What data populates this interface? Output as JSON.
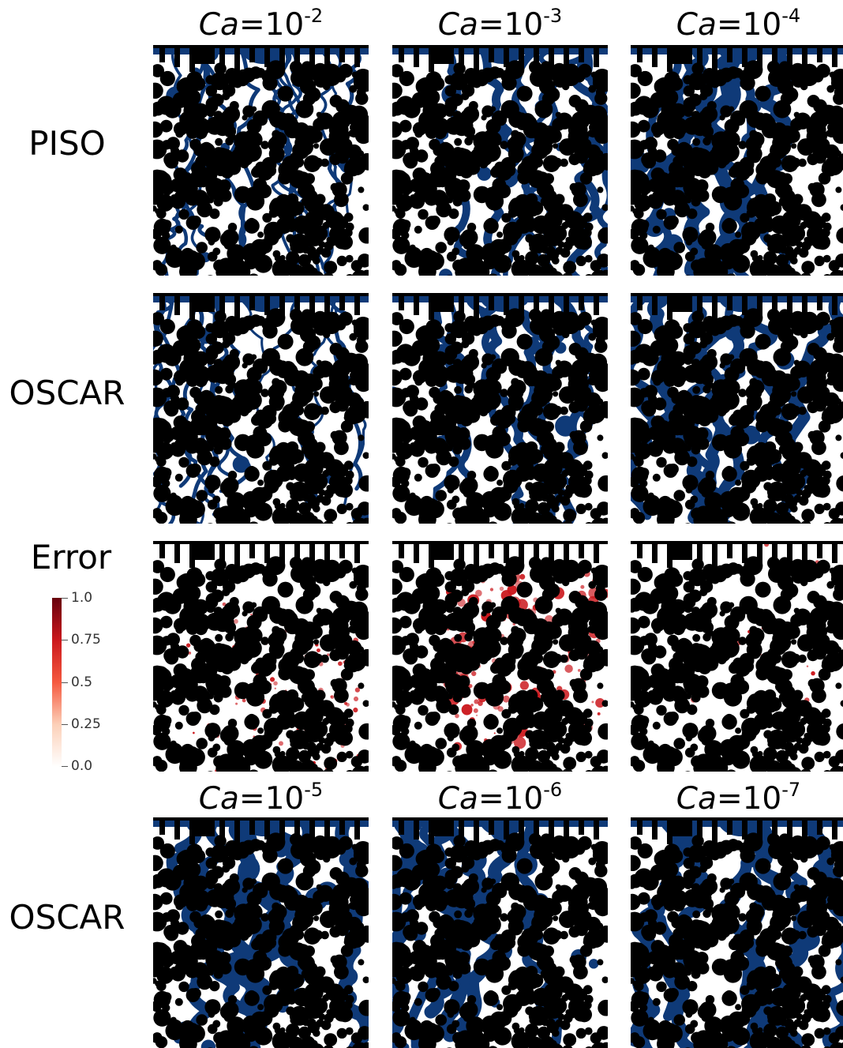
{
  "columns_top": [
    {
      "ca_symbol": "Ca",
      "eq": "=10",
      "exponent": "-2"
    },
    {
      "ca_symbol": "Ca",
      "eq": "=10",
      "exponent": "-3"
    },
    {
      "ca_symbol": "Ca",
      "eq": "=10",
      "exponent": "-4"
    }
  ],
  "columns_bottom": [
    {
      "ca_symbol": "Ca",
      "eq": "=10",
      "exponent": "-5"
    },
    {
      "ca_symbol": "Ca",
      "eq": "=10",
      "exponent": "-6"
    },
    {
      "ca_symbol": "Ca",
      "eq": "=10",
      "exponent": "-7"
    }
  ],
  "row_labels": {
    "piso": "PISO",
    "oscar": "OSCAR",
    "error": "Error",
    "oscar_bottom": "OSCAR"
  },
  "colorbar": {
    "ticks": [
      "1.0",
      "0.75",
      "0.5",
      "0.25",
      "0.0"
    ],
    "min": 0.0,
    "max": 1.0
  },
  "colors": {
    "fluid": "#0f3a78",
    "grain": "#000000",
    "background": "#ffffff",
    "error_high": "#cb181d"
  }
}
